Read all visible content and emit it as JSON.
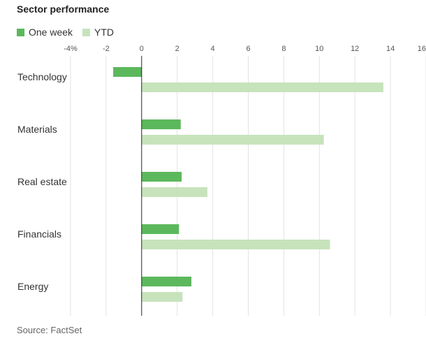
{
  "title": "Sector performance",
  "source": "Source: FactSet",
  "legend": [
    {
      "label": "One week",
      "color": "#5cb85c"
    },
    {
      "label": "YTD",
      "color": "#c7e3bc"
    }
  ],
  "chart_data": {
    "type": "bar",
    "orientation": "horizontal",
    "title": "Sector performance",
    "xlabel": "",
    "ylabel": "",
    "categories": [
      "Technology",
      "Materials",
      "Real estate",
      "Financials",
      "Energy"
    ],
    "series": [
      {
        "name": "One week",
        "color": "#5cb85c",
        "values": [
          -1.6,
          2.2,
          2.25,
          2.1,
          2.8
        ]
      },
      {
        "name": "YTD",
        "color": "#c7e3bc",
        "values": [
          13.6,
          10.25,
          3.7,
          10.6,
          2.3
        ]
      }
    ],
    "xlim": [
      -4,
      16
    ],
    "xticks": [
      -4,
      -2,
      0,
      2,
      4,
      6,
      8,
      10,
      12,
      14,
      16
    ],
    "xtick_labels": [
      "-4%",
      "-2",
      "0",
      "2",
      "4",
      "6",
      "8",
      "10",
      "12",
      "14",
      "16"
    ],
    "grid": true,
    "legend_position": "top-left"
  }
}
